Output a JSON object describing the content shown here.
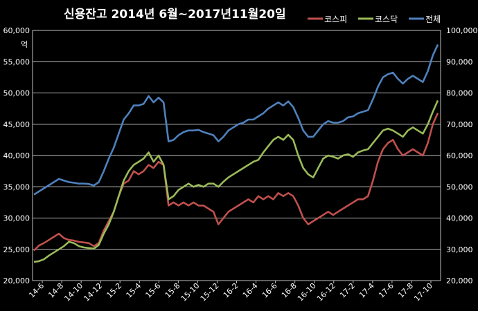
{
  "chart_data": {
    "type": "line",
    "title": "신용잔고  2014년 6월~2017년11월20일",
    "y_unit_label": "억",
    "x_ticks": [
      "14-6",
      "14-8",
      "14-10",
      "14-12",
      "15-2",
      "15-4",
      "15-6",
      "15-8",
      "15-10",
      "15-12",
      "16-2",
      "16-4",
      "16-6",
      "16-8",
      "16-10",
      "16-12",
      "17-2",
      "17-4",
      "17-6",
      "17-8",
      "17-10"
    ],
    "y_left": {
      "min": 20000,
      "max": 60000,
      "step": 5000,
      "tick_labels": [
        "20,000",
        "25,000",
        "30,000",
        "35,000",
        "40,000",
        "45,000",
        "50,000",
        "55,000",
        "60,000"
      ]
    },
    "y_right": {
      "min": 20000,
      "max": 100000,
      "step": 10000,
      "tick_labels": [
        "20,000",
        "30,000",
        "40,000",
        "50,000",
        "60,000",
        "70,000",
        "80,000",
        "90,000",
        "100,000"
      ]
    },
    "grid": true,
    "legend_position": "top-right",
    "series": [
      {
        "name": "코스피",
        "axis": "left",
        "color": "#c0504d",
        "values": [
          24800,
          25600,
          26000,
          26500,
          27000,
          27500,
          26800,
          26500,
          26400,
          26200,
          26100,
          26000,
          25500,
          26000,
          28000,
          29500,
          31000,
          33500,
          35500,
          36000,
          37500,
          37000,
          37500,
          38500,
          38000,
          39000,
          38500,
          32000,
          32500,
          32000,
          32500,
          32000,
          32500,
          32000,
          32000,
          31500,
          31000,
          29000,
          30000,
          31000,
          31500,
          32000,
          32500,
          33000,
          32500,
          33500,
          33000,
          33500,
          33000,
          34000,
          33500,
          34000,
          33500,
          32000,
          30000,
          29000,
          29500,
          30000,
          30500,
          31000,
          30500,
          31000,
          31500,
          32000,
          32500,
          33000,
          33000,
          33500,
          36000,
          39000,
          41000,
          42000,
          42500,
          41000,
          40000,
          40500,
          41000,
          40500,
          40000,
          42000,
          45000,
          46800
        ]
      },
      {
        "name": "코스닥",
        "axis": "left",
        "color": "#9bbb59",
        "values": [
          23000,
          23100,
          23400,
          24000,
          24500,
          25000,
          25500,
          26200,
          26000,
          25500,
          25300,
          25200,
          25100,
          25700,
          27500,
          29000,
          31000,
          33500,
          36000,
          37500,
          38500,
          39000,
          39500,
          40500,
          39000,
          40000,
          38500,
          33000,
          33500,
          34500,
          35000,
          35500,
          35000,
          35300,
          35000,
          35500,
          35500,
          35000,
          35800,
          36500,
          37000,
          37500,
          38000,
          38500,
          39000,
          39300,
          40500,
          41500,
          42500,
          43000,
          42500,
          43300,
          42500,
          40000,
          38000,
          37000,
          36500,
          38000,
          39500,
          40000,
          39800,
          39500,
          40000,
          40200,
          39800,
          40500,
          40800,
          41000,
          42000,
          43000,
          44000,
          44300,
          44000,
          43500,
          43000,
          44000,
          44500,
          44000,
          43500,
          45000,
          47000,
          48800
        ]
      },
      {
        "name": "전체",
        "axis": "right",
        "color": "#4f81bd",
        "values": [
          47500,
          48500,
          49500,
          50500,
          51500,
          52500,
          52000,
          51500,
          51300,
          51000,
          51000,
          50900,
          50400,
          51500,
          55000,
          59000,
          62500,
          67000,
          71500,
          73500,
          76000,
          76000,
          76500,
          79000,
          77000,
          78500,
          77000,
          64500,
          65000,
          66500,
          67500,
          68000,
          68000,
          68200,
          67500,
          67000,
          66500,
          64500,
          66000,
          68000,
          69000,
          70000,
          70500,
          71500,
          71500,
          72500,
          73500,
          75000,
          76000,
          77000,
          76000,
          77300,
          75500,
          72000,
          68000,
          66000,
          66000,
          68000,
          70000,
          71000,
          70500,
          70500,
          71000,
          72200,
          72500,
          73500,
          74000,
          74500,
          78000,
          82000,
          85000,
          86000,
          86500,
          84500,
          83000,
          84500,
          85500,
          84500,
          83500,
          87000,
          92000,
          95500
        ]
      }
    ]
  }
}
